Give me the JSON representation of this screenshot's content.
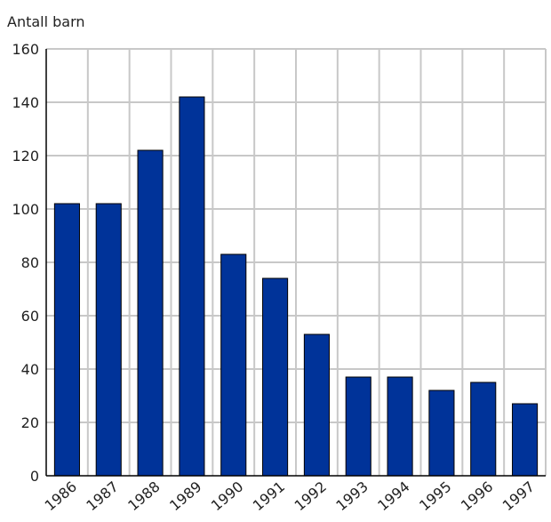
{
  "chart_data": {
    "type": "bar",
    "title": "",
    "xlabel": "",
    "ylabel": "Antall barn",
    "categories": [
      "1986",
      "1987",
      "1988",
      "1989",
      "1990",
      "1991",
      "1992",
      "1993",
      "1994",
      "1995",
      "1996",
      "1997"
    ],
    "values": [
      102,
      102,
      122,
      142,
      83,
      74,
      53,
      37,
      37,
      32,
      35,
      27
    ],
    "ylim": [
      0,
      160
    ],
    "yticks": [
      0,
      20,
      40,
      60,
      80,
      100,
      120,
      140,
      160
    ],
    "grid": true,
    "bar_color": "#003399",
    "grid_color": "#c8c8c8"
  }
}
